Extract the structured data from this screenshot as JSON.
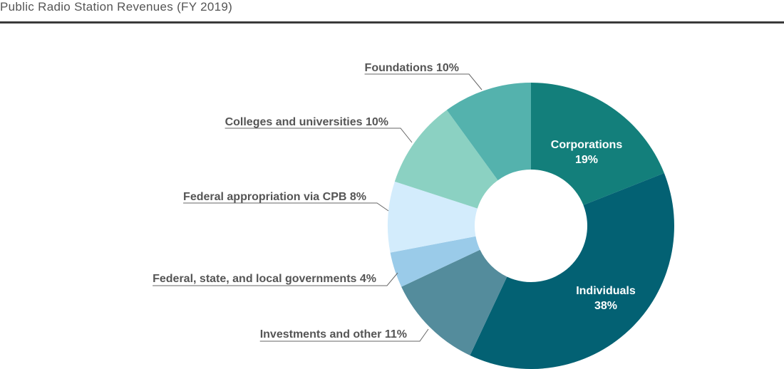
{
  "title": "Public Radio Station Revenues (FY 2019)",
  "chart_data": {
    "type": "pie",
    "title": "Public Radio Station Revenues (FY 2019)",
    "donut": true,
    "slices": [
      {
        "name": "Corporations",
        "value": 19,
        "pct_label": "19%",
        "color": "#137f7b",
        "label_inside": true
      },
      {
        "name": "Individuals",
        "value": 38,
        "pct_label": "38%",
        "color": "#036173",
        "label_inside": true
      },
      {
        "name": "Investments and other",
        "value": 11,
        "pct_label": "11%",
        "color": "#548c9c",
        "label_inside": false
      },
      {
        "name": "Federal, state, and local governments",
        "value": 4,
        "pct_label": "4%",
        "color": "#9acbe9",
        "label_inside": false
      },
      {
        "name": "Federal appropriation via CPB",
        "value": 8,
        "pct_label": "8%",
        "color": "#d3ecfc",
        "label_inside": false
      },
      {
        "name": "Colleges and universities",
        "value": 10,
        "pct_label": "10%",
        "color": "#8bd1c2",
        "label_inside": false
      },
      {
        "name": "Foundations",
        "value": 10,
        "pct_label": "10%",
        "color": "#54b2ad",
        "label_inside": false
      }
    ],
    "leader_color": "#666666"
  }
}
